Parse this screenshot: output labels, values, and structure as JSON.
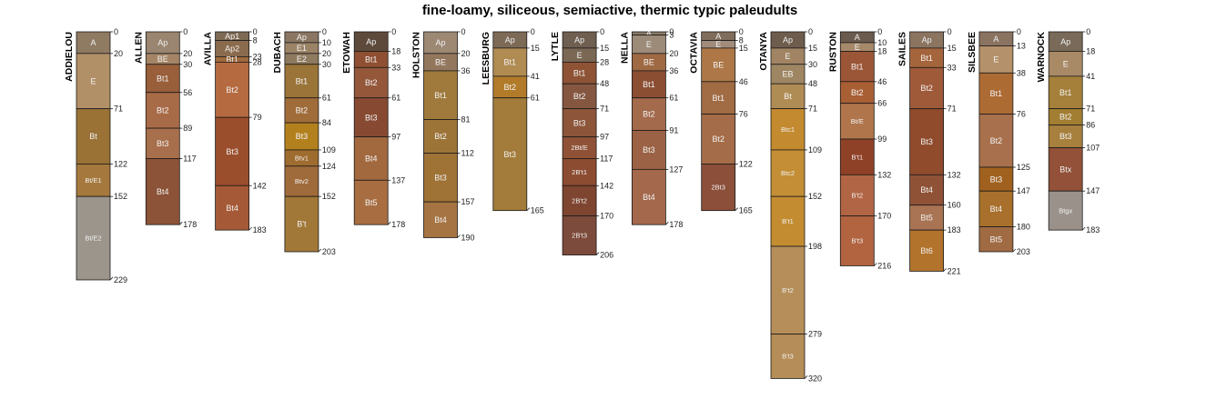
{
  "chart_data": {
    "type": "soil-profile-sketch",
    "title": "fine-loamy, siliceous, semiactive, thermic typic paleudults",
    "depth_units": "cm",
    "depth_range": [
      0,
      320
    ],
    "profiles": [
      {
        "name": "ADDIELOU",
        "horizons": [
          {
            "name": "A",
            "top": 0,
            "bottom": 20,
            "color": "#8f7a62"
          },
          {
            "name": "E",
            "top": 20,
            "bottom": 71,
            "color": "#b29067"
          },
          {
            "name": "Bt",
            "top": 71,
            "bottom": 122,
            "color": "#9a7236"
          },
          {
            "name": "Bt/E1",
            "top": 122,
            "bottom": 152,
            "color": "#a5793d"
          },
          {
            "name": "Bt/E2",
            "top": 152,
            "bottom": 229,
            "color": "#9b958c"
          }
        ]
      },
      {
        "name": "ALLEN",
        "horizons": [
          {
            "name": "Ap",
            "top": 0,
            "bottom": 20,
            "color": "#9a8570"
          },
          {
            "name": "BE",
            "top": 20,
            "bottom": 30,
            "color": "#a58466"
          },
          {
            "name": "Bt1",
            "top": 30,
            "bottom": 56,
            "color": "#985f3a"
          },
          {
            "name": "Bt2",
            "top": 56,
            "bottom": 89,
            "color": "#a86b47"
          },
          {
            "name": "Bt3",
            "top": 89,
            "bottom": 117,
            "color": "#a86f4c"
          },
          {
            "name": "Bt4",
            "top": 117,
            "bottom": 178,
            "color": "#8c5338"
          }
        ]
      },
      {
        "name": "AVILLA",
        "horizons": [
          {
            "name": "Ap1",
            "top": 0,
            "bottom": 8,
            "color": "#7e6a55"
          },
          {
            "name": "Ap2",
            "top": 8,
            "bottom": 23,
            "color": "#8a6b4d"
          },
          {
            "name": "Bt1",
            "top": 23,
            "bottom": 28,
            "color": "#9f6a3d"
          },
          {
            "name": "Bt2",
            "top": 28,
            "bottom": 79,
            "color": "#b56a40"
          },
          {
            "name": "Bt3",
            "top": 79,
            "bottom": 142,
            "color": "#9b4e2c"
          },
          {
            "name": "Bt4",
            "top": 142,
            "bottom": 183,
            "color": "#a65936"
          }
        ]
      },
      {
        "name": "DUBACH",
        "horizons": [
          {
            "name": "Ap",
            "top": 0,
            "bottom": 10,
            "color": "#8a7663"
          },
          {
            "name": "E1",
            "top": 10,
            "bottom": 20,
            "color": "#9b8366"
          },
          {
            "name": "E2",
            "top": 20,
            "bottom": 30,
            "color": "#8e7a5f"
          },
          {
            "name": "Bt1",
            "top": 30,
            "bottom": 61,
            "color": "#9a7438"
          },
          {
            "name": "Bt2",
            "top": 61,
            "bottom": 84,
            "color": "#a06c3a"
          },
          {
            "name": "Bt3",
            "top": 84,
            "bottom": 109,
            "color": "#b3801e"
          },
          {
            "name": "Btv1",
            "top": 109,
            "bottom": 124,
            "color": "#9e6c2e"
          },
          {
            "name": "Btv2",
            "top": 124,
            "bottom": 152,
            "color": "#a06b3a"
          },
          {
            "name": "B't",
            "top": 152,
            "bottom": 203,
            "color": "#a27838"
          }
        ]
      },
      {
        "name": "ETOWAH",
        "horizons": [
          {
            "name": "Ap",
            "top": 0,
            "bottom": 18,
            "color": "#5e4a3b"
          },
          {
            "name": "Bt1",
            "top": 18,
            "bottom": 33,
            "color": "#8e4f32"
          },
          {
            "name": "Bt2",
            "top": 33,
            "bottom": 61,
            "color": "#94573a"
          },
          {
            "name": "Bt3",
            "top": 61,
            "bottom": 97,
            "color": "#874932"
          },
          {
            "name": "Bt4",
            "top": 97,
            "bottom": 137,
            "color": "#a2693e"
          },
          {
            "name": "Bt5",
            "top": 137,
            "bottom": 178,
            "color": "#a86e42"
          }
        ]
      },
      {
        "name": "HOLSTON",
        "horizons": [
          {
            "name": "Ap",
            "top": 0,
            "bottom": 20,
            "color": "#9c8873"
          },
          {
            "name": "BE",
            "top": 20,
            "bottom": 36,
            "color": "#93775d"
          },
          {
            "name": "Bt1",
            "top": 36,
            "bottom": 81,
            "color": "#a07a3c"
          },
          {
            "name": "Bt2",
            "top": 81,
            "bottom": 112,
            "color": "#9d7438"
          },
          {
            "name": "Bt3",
            "top": 112,
            "bottom": 157,
            "color": "#9f7236"
          },
          {
            "name": "Bt4",
            "top": 157,
            "bottom": 190,
            "color": "#a57442"
          }
        ]
      },
      {
        "name": "LEESBURG",
        "horizons": [
          {
            "name": "Ap",
            "top": 0,
            "bottom": 15,
            "color": "#7d6a56"
          },
          {
            "name": "Bt1",
            "top": 15,
            "bottom": 41,
            "color": "#b08b52"
          },
          {
            "name": "Bt2",
            "top": 41,
            "bottom": 61,
            "color": "#b27b2a"
          },
          {
            "name": "Bt3",
            "top": 61,
            "bottom": 165,
            "color": "#a37b3a"
          }
        ]
      },
      {
        "name": "LYTLE",
        "horizons": [
          {
            "name": "Ap",
            "top": 0,
            "bottom": 15,
            "color": "#6f5f51"
          },
          {
            "name": "E",
            "top": 15,
            "bottom": 28,
            "color": "#7a6754"
          },
          {
            "name": "Bt1",
            "top": 28,
            "bottom": 48,
            "color": "#8e5335"
          },
          {
            "name": "Bt2",
            "top": 48,
            "bottom": 71,
            "color": "#855741"
          },
          {
            "name": "Bt3",
            "top": 71,
            "bottom": 97,
            "color": "#8d553a"
          },
          {
            "name": "2Bt/E",
            "top": 97,
            "bottom": 117,
            "color": "#8f5237"
          },
          {
            "name": "2B't1",
            "top": 117,
            "bottom": 142,
            "color": "#8c4c31"
          },
          {
            "name": "2B't2",
            "top": 142,
            "bottom": 170,
            "color": "#7e4530"
          },
          {
            "name": "2B't3",
            "top": 170,
            "bottom": 206,
            "color": "#7d4b3b"
          }
        ]
      },
      {
        "name": "NELLA",
        "horizons": [
          {
            "name": "A",
            "top": 0,
            "bottom": 3,
            "color": "#8a7a67"
          },
          {
            "name": "E",
            "top": 3,
            "bottom": 20,
            "color": "#9c8b78"
          },
          {
            "name": "BE",
            "top": 20,
            "bottom": 36,
            "color": "#9e6943"
          },
          {
            "name": "Bt1",
            "top": 36,
            "bottom": 61,
            "color": "#8c4e33"
          },
          {
            "name": "Bt2",
            "top": 61,
            "bottom": 91,
            "color": "#a36a4b"
          },
          {
            "name": "Bt3",
            "top": 91,
            "bottom": 127,
            "color": "#9b6245"
          },
          {
            "name": "Bt4",
            "top": 127,
            "bottom": 178,
            "color": "#a4684c"
          }
        ]
      },
      {
        "name": "OCTAVIA",
        "horizons": [
          {
            "name": "A",
            "top": 0,
            "bottom": 8,
            "color": "#806d5c"
          },
          {
            "name": "E",
            "top": 8,
            "bottom": 15,
            "color": "#a18c7b"
          },
          {
            "name": "BE",
            "top": 15,
            "bottom": 46,
            "color": "#ad7747"
          },
          {
            "name": "Bt1",
            "top": 46,
            "bottom": 76,
            "color": "#a16b43"
          },
          {
            "name": "Bt2",
            "top": 76,
            "bottom": 122,
            "color": "#a46c48"
          },
          {
            "name": "2Bt3",
            "top": 122,
            "bottom": 165,
            "color": "#8b4f3a"
          }
        ]
      },
      {
        "name": "OTANYA",
        "horizons": [
          {
            "name": "Ap",
            "top": 0,
            "bottom": 15,
            "color": "#6e5c4d"
          },
          {
            "name": "E",
            "top": 15,
            "bottom": 30,
            "color": "#a18463"
          },
          {
            "name": "EB",
            "top": 30,
            "bottom": 48,
            "color": "#9f8663"
          },
          {
            "name": "Bt",
            "top": 48,
            "bottom": 71,
            "color": "#b08c55"
          },
          {
            "name": "Btc1",
            "top": 71,
            "bottom": 109,
            "color": "#c48a30"
          },
          {
            "name": "Btc2",
            "top": 109,
            "bottom": 152,
            "color": "#c38e35"
          },
          {
            "name": "B't1",
            "top": 152,
            "bottom": 198,
            "color": "#c38c31"
          },
          {
            "name": "B't2",
            "top": 198,
            "bottom": 279,
            "color": "#b68e59"
          },
          {
            "name": "B't3",
            "top": 279,
            "bottom": 320,
            "color": "#b58d58"
          }
        ]
      },
      {
        "name": "RUSTON",
        "horizons": [
          {
            "name": "A",
            "top": 0,
            "bottom": 10,
            "color": "#6b5b4e"
          },
          {
            "name": "E",
            "top": 10,
            "bottom": 18,
            "color": "#a6886a"
          },
          {
            "name": "Bt1",
            "top": 18,
            "bottom": 46,
            "color": "#9b5638"
          },
          {
            "name": "Bt2",
            "top": 46,
            "bottom": 66,
            "color": "#a95f34"
          },
          {
            "name": "Bt/E",
            "top": 66,
            "bottom": 99,
            "color": "#b0754b"
          },
          {
            "name": "B't1",
            "top": 99,
            "bottom": 132,
            "color": "#8f4127"
          },
          {
            "name": "B't2",
            "top": 132,
            "bottom": 170,
            "color": "#b26544"
          },
          {
            "name": "B't3",
            "top": 170,
            "bottom": 216,
            "color": "#b26441"
          }
        ]
      },
      {
        "name": "SAILES",
        "horizons": [
          {
            "name": "Ap",
            "top": 0,
            "bottom": 15,
            "color": "#8b7460"
          },
          {
            "name": "Bt1",
            "top": 15,
            "bottom": 33,
            "color": "#a5653c"
          },
          {
            "name": "Bt2",
            "top": 33,
            "bottom": 71,
            "color": "#9f5a3a"
          },
          {
            "name": "Bt3",
            "top": 71,
            "bottom": 132,
            "color": "#8f4b2c"
          },
          {
            "name": "Bt4",
            "top": 132,
            "bottom": 160,
            "color": "#8f5237"
          },
          {
            "name": "Bt5",
            "top": 160,
            "bottom": 183,
            "color": "#a97453"
          },
          {
            "name": "Bt6",
            "top": 183,
            "bottom": 221,
            "color": "#b2732c"
          }
        ]
      },
      {
        "name": "SILSBEE",
        "horizons": [
          {
            "name": "A",
            "top": 0,
            "bottom": 13,
            "color": "#8a7361"
          },
          {
            "name": "E",
            "top": 13,
            "bottom": 38,
            "color": "#b5916b"
          },
          {
            "name": "Bt1",
            "top": 38,
            "bottom": 76,
            "color": "#ad6b34"
          },
          {
            "name": "Bt2",
            "top": 76,
            "bottom": 125,
            "color": "#a8704d"
          },
          {
            "name": "Bt3",
            "top": 125,
            "bottom": 147,
            "color": "#a0611f"
          },
          {
            "name": "Bt4",
            "top": 147,
            "bottom": 180,
            "color": "#a8702c"
          },
          {
            "name": "Bt5",
            "top": 180,
            "bottom": 203,
            "color": "#a06b43"
          }
        ]
      },
      {
        "name": "WARNOCK",
        "horizons": [
          {
            "name": "Ap",
            "top": 0,
            "bottom": 18,
            "color": "#7a6a59"
          },
          {
            "name": "E",
            "top": 18,
            "bottom": 41,
            "color": "#a88a67"
          },
          {
            "name": "Bt1",
            "top": 41,
            "bottom": 71,
            "color": "#a5803a"
          },
          {
            "name": "Bt2",
            "top": 71,
            "bottom": 86,
            "color": "#a27e32"
          },
          {
            "name": "Bt3",
            "top": 86,
            "bottom": 107,
            "color": "#a7803e"
          },
          {
            "name": "Btx",
            "top": 107,
            "bottom": 147,
            "color": "#925138"
          },
          {
            "name": "Btgx",
            "top": 147,
            "bottom": 183,
            "color": "#9a918b"
          }
        ]
      }
    ]
  }
}
